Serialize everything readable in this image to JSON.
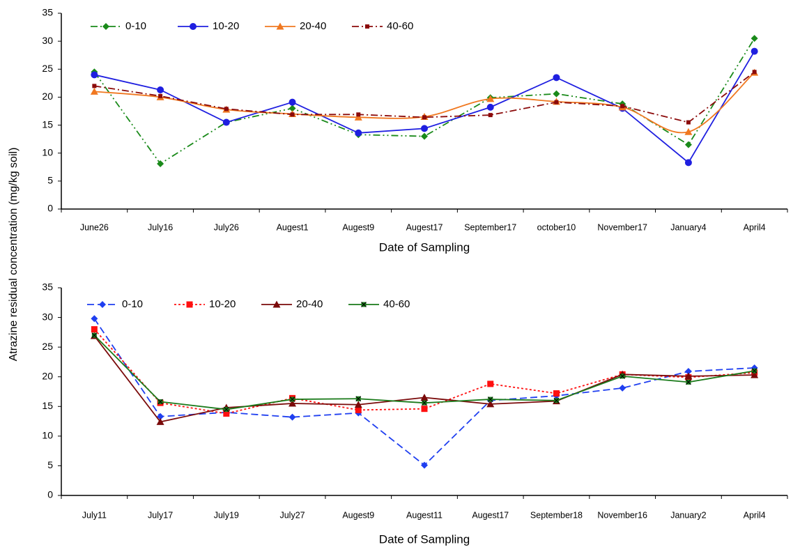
{
  "chart_data": [
    {
      "type": "line",
      "ylabel": "Atrazine residual concentration (mg/kg soil)",
      "xlabel": "Date of Sampling",
      "categories": [
        "June26",
        "July16",
        "July26",
        "Augest1",
        "Augest9",
        "Augest17",
        "September17",
        "october10",
        "November17",
        "January4",
        "April4"
      ],
      "ylim": [
        0,
        35
      ],
      "yticks": [
        0,
        5,
        10,
        15,
        20,
        25,
        30,
        35
      ],
      "series": [
        {
          "name": "0-10",
          "color": "#1a8a1a",
          "marker": "diamond",
          "linestyle": "dashdotdot",
          "values": [
            24.5,
            8.1,
            15.5,
            18,
            13.3,
            13,
            19.9,
            20.6,
            18.8,
            11.5,
            30.5
          ]
        },
        {
          "name": "10-20",
          "color": "#1f1fe0",
          "marker": "circle",
          "linestyle": "solid",
          "values": [
            24,
            21.3,
            15.5,
            19.1,
            13.6,
            14.4,
            18.2,
            23.5,
            18,
            8.3,
            28.2
          ]
        },
        {
          "name": "20-40",
          "color": "#f07820",
          "marker": "triangle",
          "linestyle": "smooth",
          "values": [
            21,
            20,
            17.8,
            17,
            16.4,
            16.5,
            19.7,
            19.2,
            18.2,
            13.8,
            24.4
          ]
        },
        {
          "name": "40-60",
          "color": "#8b0a0a",
          "marker": "smallsquare",
          "linestyle": "dashdot",
          "values": [
            22,
            20.2,
            17.9,
            16.9,
            16.9,
            16.4,
            16.8,
            19.1,
            18.4,
            15.5,
            24.5
          ]
        }
      ]
    },
    {
      "type": "line",
      "xlabel": "Date of Sampling",
      "categories": [
        "July11",
        "July17",
        "July19",
        "July27",
        "Augest9",
        "Augest11",
        "Augest17",
        "September18",
        "November16",
        "January2",
        "April4"
      ],
      "ylim": [
        0,
        35
      ],
      "yticks": [
        0,
        5,
        10,
        15,
        20,
        25,
        30,
        35
      ],
      "series": [
        {
          "name": "0-10",
          "color": "#1f3ff0",
          "marker": "diamond",
          "linestyle": "dashed",
          "values": [
            29.8,
            13.3,
            14,
            13.2,
            13.9,
            5.1,
            16,
            16.8,
            18.1,
            20.9,
            21.5
          ]
        },
        {
          "name": "10-20",
          "color": "#ff1010",
          "marker": "square",
          "linestyle": "dotted",
          "values": [
            28,
            15.6,
            13.8,
            16.4,
            14.4,
            14.6,
            18.8,
            17.2,
            20.4,
            19.9,
            20.7
          ]
        },
        {
          "name": "20-40",
          "color": "#7a0a0a",
          "marker": "triangle",
          "linestyle": "solid",
          "values": [
            26.9,
            12.4,
            14.8,
            15.5,
            15.3,
            16.5,
            15.4,
            15.9,
            20.4,
            20.1,
            20.3
          ]
        },
        {
          "name": "40-60",
          "color": "#1a7a1a",
          "marker": "xsquare",
          "linestyle": "solid",
          "values": [
            27,
            15.8,
            14.5,
            16.2,
            16.3,
            15.6,
            16.2,
            16,
            20.1,
            19.1,
            21
          ]
        }
      ]
    }
  ]
}
